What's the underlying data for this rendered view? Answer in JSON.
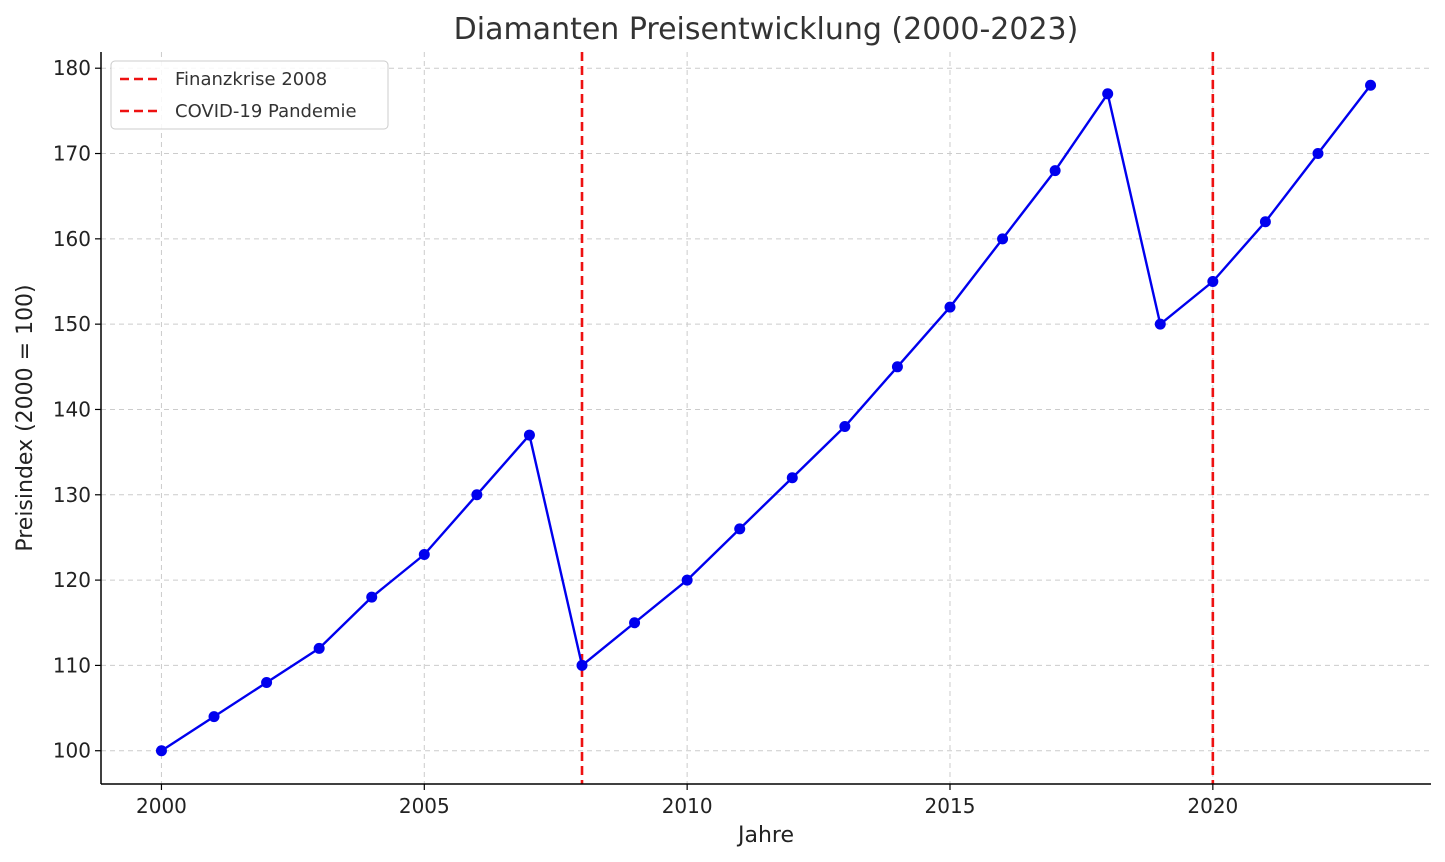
{
  "chart_data": {
    "type": "line",
    "title": "Diamanten Preisentwicklung (2000-2023)",
    "xlabel": "Jahre",
    "ylabel": "Preisindex (2000 = 100)",
    "xlim": [
      1998.85,
      2024.15
    ],
    "ylim": [
      96.1,
      181.9
    ],
    "x_ticks": [
      2000,
      2005,
      2010,
      2015,
      2020
    ],
    "y_ticks": [
      100,
      110,
      120,
      130,
      140,
      150,
      160,
      170,
      180
    ],
    "grid": true,
    "legend_position": "top-left",
    "series": [
      {
        "color": "#0000ee",
        "marker": "circle",
        "x": [
          2000,
          2001,
          2002,
          2003,
          2004,
          2005,
          2006,
          2007,
          2008,
          2009,
          2010,
          2011,
          2012,
          2013,
          2014,
          2015,
          2016,
          2017,
          2018,
          2019,
          2020,
          2021,
          2022,
          2023
        ],
        "values": [
          100,
          104,
          108,
          112,
          118,
          123,
          130,
          137,
          110,
          115,
          120,
          126,
          132,
          138,
          145,
          152,
          160,
          168,
          177,
          150,
          155,
          162,
          170,
          178
        ]
      }
    ],
    "annotations": [
      {
        "type": "vline",
        "x": 2008,
        "label": "Finanzkrise 2008",
        "color": "#ee1111",
        "style": "dashed"
      },
      {
        "type": "vline",
        "x": 2020,
        "label": "COVID-19 Pandemie",
        "color": "#ee1111",
        "style": "dashed"
      }
    ]
  }
}
